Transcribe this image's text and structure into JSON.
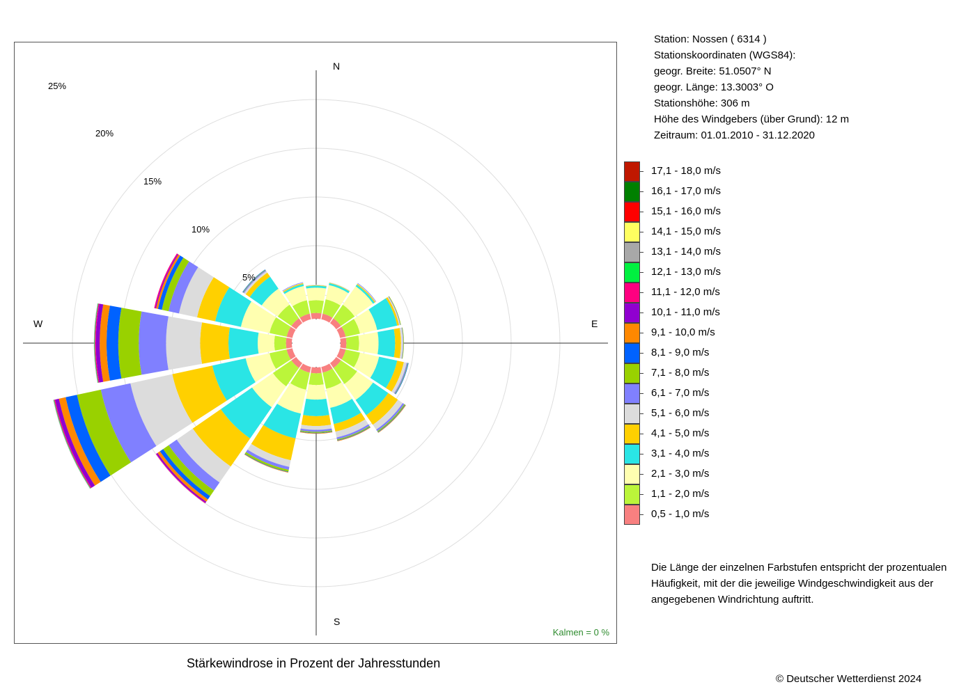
{
  "station": {
    "line1": "Station:  Nossen  ( 6314 )",
    "line2": "Stationskoordinaten (WGS84):",
    "line3": "geogr. Breite: 51.0507° N",
    "line4": "geogr. Länge: 13.3003° O",
    "line5": "Stationshöhe: 306 m",
    "line6": "Höhe des Windgebers (über Grund): 12 m",
    "line7": "Zeitraum: 01.01.2010 - 31.12.2020"
  },
  "note": "Die Länge der einzelnen Farbstufen entspricht der prozentualen Häufigkeit, mit der die jeweilige Windgeschwindigkeit aus der angegebenen Windrichtung auftritt.",
  "caption": "Stärkewindrose in Prozent der Jahresstunden",
  "copyright": "© Deutscher Wetterdienst  2024",
  "calm": "Kalmen  =  0 %",
  "directions": {
    "n": "N",
    "e": "E",
    "s": "S",
    "w": "W"
  },
  "chart_data": {
    "type": "windrose",
    "title": "Stärkewindrose in Prozent der Jahresstunden",
    "radial_unit": "%",
    "radial_ticks": [
      5,
      10,
      15,
      20,
      25
    ],
    "radial_tick_labels": [
      "5%",
      "10%",
      "15%",
      "20%",
      "25%"
    ],
    "inner_radius_percent": 2.5,
    "sectors": [
      "N",
      "NNE",
      "NE",
      "ENE",
      "E",
      "ESE",
      "SE",
      "SSE",
      "S",
      "SSW",
      "SW",
      "WSW",
      "W",
      "WNW",
      "NW",
      "NNW"
    ],
    "sector_angles_deg": [
      0,
      22.5,
      45,
      67.5,
      90,
      112.5,
      135,
      157.5,
      180,
      202.5,
      225,
      247.5,
      270,
      292.5,
      315,
      337.5
    ],
    "speed_classes": [
      {
        "label": "0,5 - 1,0 m/s",
        "color": "#f88080"
      },
      {
        "label": "1,1 - 2,0 m/s",
        "color": "#bbf53a"
      },
      {
        "label": "2,1 - 3,0 m/s",
        "color": "#ffffb0"
      },
      {
        "label": "3,1 - 4,0 m/s",
        "color": "#2ae5e5"
      },
      {
        "label": "4,1 - 5,0 m/s",
        "color": "#ffd000"
      },
      {
        "label": "5,1 - 6,0 m/s",
        "color": "#dcdcdc"
      },
      {
        "label": "6,1 - 7,0 m/s",
        "color": "#8080ff"
      },
      {
        "label": "7,1 - 8,0 m/s",
        "color": "#99d100"
      },
      {
        "label": "8,1 - 9,0 m/s",
        "color": "#0062ff"
      },
      {
        "label": "9,1 - 10,0 m/s",
        "color": "#ff8800"
      },
      {
        "label": "10,1 - 11,0 m/s",
        "color": "#9000d0"
      },
      {
        "label": "11,1 - 12,0 m/s",
        "color": "#ff0080"
      },
      {
        "label": "12,1 - 13,0 m/s",
        "color": "#00f040"
      },
      {
        "label": "13,1 - 14,0 m/s",
        "color": "#a8a8a8"
      },
      {
        "label": "14,1 - 15,0 m/s",
        "color": "#ffff60"
      },
      {
        "label": "15,1 - 16,0 m/s",
        "color": "#ff0000"
      },
      {
        "label": "16,1 - 17,0 m/s",
        "color": "#008000"
      },
      {
        "label": "17,1 - 18,0 m/s",
        "color": "#c01800"
      }
    ],
    "cumulative_percent": [
      [
        3.1,
        4.4,
        5.7,
        5.9,
        5.95,
        6.0,
        6.0,
        6.0,
        6.0,
        6.0,
        6.0,
        6.0,
        6.0,
        6.0,
        6.0,
        6.0,
        6.0,
        6.0
      ],
      [
        3.1,
        4.6,
        6.1,
        6.3,
        6.35,
        6.4,
        6.4,
        6.4,
        6.4,
        6.4,
        6.4,
        6.4,
        6.4,
        6.4,
        6.4,
        6.4,
        6.4,
        6.4
      ],
      [
        3.1,
        4.8,
        7.1,
        7.3,
        7.4,
        7.45,
        7.5,
        7.5,
        7.5,
        7.5,
        7.5,
        7.5,
        7.5,
        7.5,
        7.5,
        7.5,
        7.5,
        7.5
      ],
      [
        3.1,
        4.6,
        6.4,
        8.5,
        8.7,
        8.8,
        8.85,
        8.9,
        8.9,
        8.9,
        8.9,
        8.9,
        8.9,
        8.9,
        8.9,
        8.9,
        8.9,
        8.9
      ],
      [
        3.1,
        4.4,
        6.4,
        8.1,
        8.7,
        8.9,
        8.95,
        9.0,
        9.0,
        9.0,
        9.0,
        9.0,
        9.0,
        9.0,
        9.0,
        9.0,
        9.0,
        9.0
      ],
      [
        3.1,
        4.6,
        6.6,
        8.5,
        9.2,
        9.5,
        9.6,
        9.65,
        9.7,
        9.7,
        9.7,
        9.7,
        9.7,
        9.7,
        9.7,
        9.7,
        9.7,
        9.7
      ],
      [
        3.1,
        5.1,
        7.1,
        9.0,
        10.2,
        10.8,
        11.0,
        11.1,
        11.15,
        11.2,
        11.2,
        11.2,
        11.2,
        11.2,
        11.2,
        11.2,
        11.2,
        11.2
      ],
      [
        3.1,
        4.8,
        6.8,
        8.5,
        9.3,
        9.9,
        10.1,
        10.2,
        10.25,
        10.3,
        10.3,
        10.3,
        10.3,
        10.3,
        10.3,
        10.3,
        10.3,
        10.3
      ],
      [
        3.1,
        4.3,
        5.8,
        7.5,
        8.5,
        8.9,
        9.1,
        9.2,
        9.25,
        9.3,
        9.3,
        9.3,
        9.3,
        9.3,
        9.3,
        9.3,
        9.3,
        9.3
      ],
      [
        3.1,
        4.9,
        7.4,
        10.0,
        12.3,
        13.0,
        13.3,
        13.5,
        13.55,
        13.6,
        13.6,
        13.6,
        13.6,
        13.6,
        13.6,
        13.6,
        13.6,
        13.6
      ],
      [
        3.1,
        5.4,
        8.0,
        11.9,
        15.4,
        17.4,
        18.4,
        19.1,
        19.5,
        19.8,
        19.95,
        20.0,
        20.0,
        20.0,
        20.0,
        20.0,
        20.0,
        20.0
      ],
      [
        3.1,
        4.9,
        7.4,
        10.9,
        15.1,
        19.5,
        22.6,
        25.1,
        26.3,
        27.0,
        27.4,
        27.5,
        27.55,
        27.6,
        27.6,
        27.6,
        27.6,
        27.6
      ],
      [
        3.1,
        4.3,
        6.0,
        9.0,
        11.9,
        15.4,
        18.2,
        20.3,
        21.5,
        22.2,
        22.6,
        22.7,
        22.75,
        22.8,
        22.8,
        22.8,
        22.8,
        22.8
      ],
      [
        3.1,
        4.9,
        7.9,
        10.6,
        12.5,
        14.4,
        15.5,
        16.2,
        16.6,
        16.8,
        16.9,
        17.0,
        17.0,
        17.0,
        17.0,
        17.0,
        17.0,
        17.0
      ],
      [
        3.1,
        4.8,
        6.8,
        8.3,
        8.8,
        9.0,
        9.1,
        9.15,
        9.2,
        9.2,
        9.2,
        9.2,
        9.2,
        9.2,
        9.2,
        9.2,
        9.2,
        9.2
      ],
      [
        3.1,
        4.5,
        6.0,
        6.2,
        6.3,
        6.35,
        6.4,
        6.4,
        6.4,
        6.4,
        6.4,
        6.4,
        6.4,
        6.4,
        6.4,
        6.4,
        6.4,
        6.4
      ]
    ]
  }
}
